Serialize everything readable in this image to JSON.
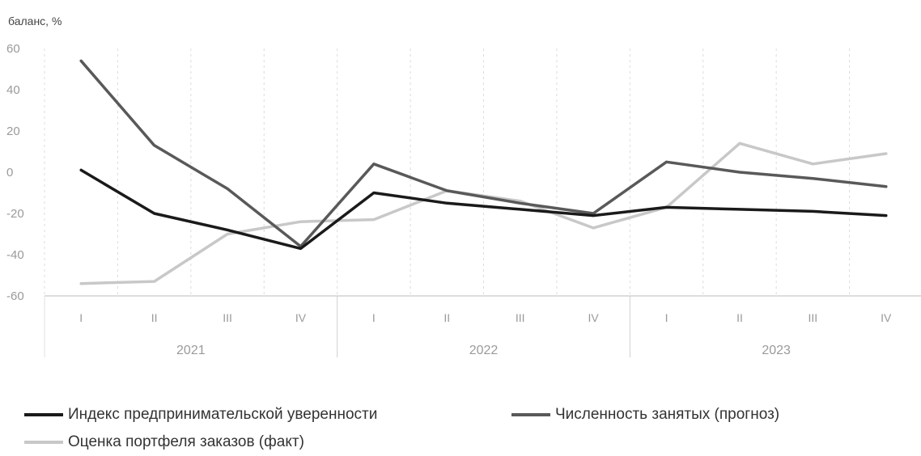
{
  "chart_data": {
    "type": "line",
    "ylabel": "баланс, %",
    "ylim": [
      -60,
      60
    ],
    "yticks": [
      60,
      40,
      20,
      0,
      -20,
      -40,
      -60
    ],
    "categories": [
      "I",
      "II",
      "III",
      "IV",
      "I",
      "II",
      "III",
      "IV",
      "I",
      "II",
      "III",
      "IV"
    ],
    "groups": [
      {
        "label": "2021",
        "span": 4
      },
      {
        "label": "2022",
        "span": 4
      },
      {
        "label": "2023",
        "span": 4
      }
    ],
    "series": [
      {
        "name": "Индекс предпринимательской уверенности",
        "color": "#1a1a1a",
        "values": [
          1,
          -20,
          -28,
          -37,
          -10,
          -15,
          -18,
          -21,
          -17,
          -18,
          -19,
          -21
        ]
      },
      {
        "name": "Численность занятых (прогноз)",
        "color": "#595959",
        "values": [
          54,
          13,
          -8,
          -36,
          4,
          -9,
          -15,
          -20,
          5,
          0,
          -3,
          -7
        ]
      },
      {
        "name": "Оценка портфеля заказов (факт)",
        "color": "#c8c8c8",
        "values": [
          -54,
          -53,
          -30,
          -24,
          -23,
          -9,
          -14,
          -27,
          -17,
          14,
          4,
          9
        ]
      }
    ],
    "grid": true,
    "legend": "bottom-left"
  }
}
